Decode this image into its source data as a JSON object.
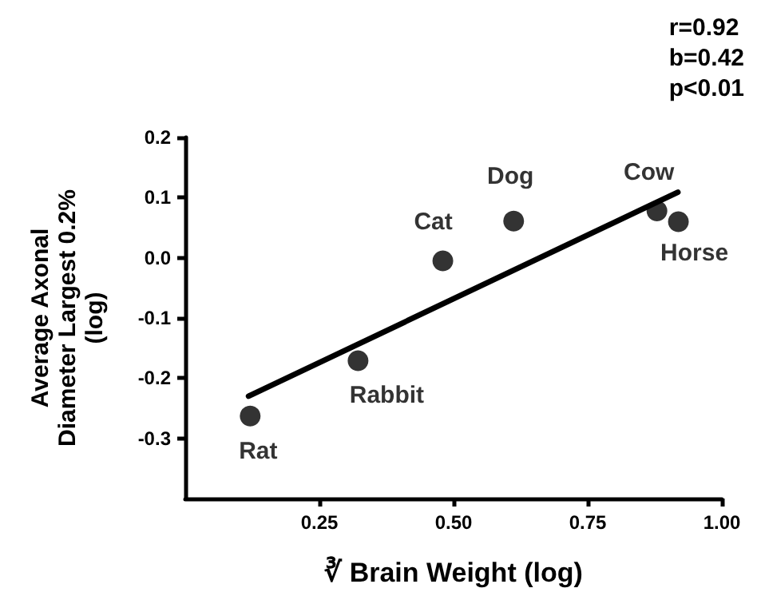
{
  "chart_data": {
    "type": "scatter",
    "xlabel": "∛ Brain Weight (log)",
    "ylabel": "Average Axonal\nDiameter Largest 0.2%\n(log)",
    "series": [
      {
        "color": "#000000",
        "x": [
          0.121,
          0.322,
          0.48,
          0.612,
          0.879,
          0.919
        ],
        "values": [
          -0.263,
          -0.171,
          -0.005,
          0.061,
          0.078,
          0.06
        ],
        "marker": "circle"
      },
      {
        "type": "line",
        "color": "#000000",
        "x": [
          0.118,
          0.918
        ],
        "values": [
          -0.23,
          0.109
        ],
        "marker": "none",
        "line_style": "solid"
      }
    ],
    "xlim": [
      0,
      1
    ],
    "xticks": [
      {
        "value": 0.25,
        "label": "0.25"
      },
      {
        "value": 0.5,
        "label": "0.50"
      },
      {
        "value": 0.75,
        "label": "0.75"
      },
      {
        "value": 1,
        "label": "1.00"
      }
    ],
    "ylim": [
      -0.4,
      0.2
    ],
    "yticks": [
      -0.3,
      -0.2,
      -0.1,
      {
        "value": 0,
        "label": "0.0"
      },
      0.1,
      0.2
    ],
    "grid": false,
    "annotations": [
      {
        "text": "Rat",
        "x": 0.121,
        "y": -0.263
      },
      {
        "text": "Rabbit",
        "x": 0.322,
        "y": -0.171
      },
      {
        "text": "Cat",
        "x": 0.48,
        "y": -0.005
      },
      {
        "text": "Dog",
        "x": 0.612,
        "y": 0.061
      },
      {
        "text": "Cow",
        "x": 0.879,
        "y": 0.078
      },
      {
        "text": "Horse",
        "x": 0.919,
        "y": 0.06
      },
      "r=0.92\nb=0.42\np<0.01"
    ]
  }
}
